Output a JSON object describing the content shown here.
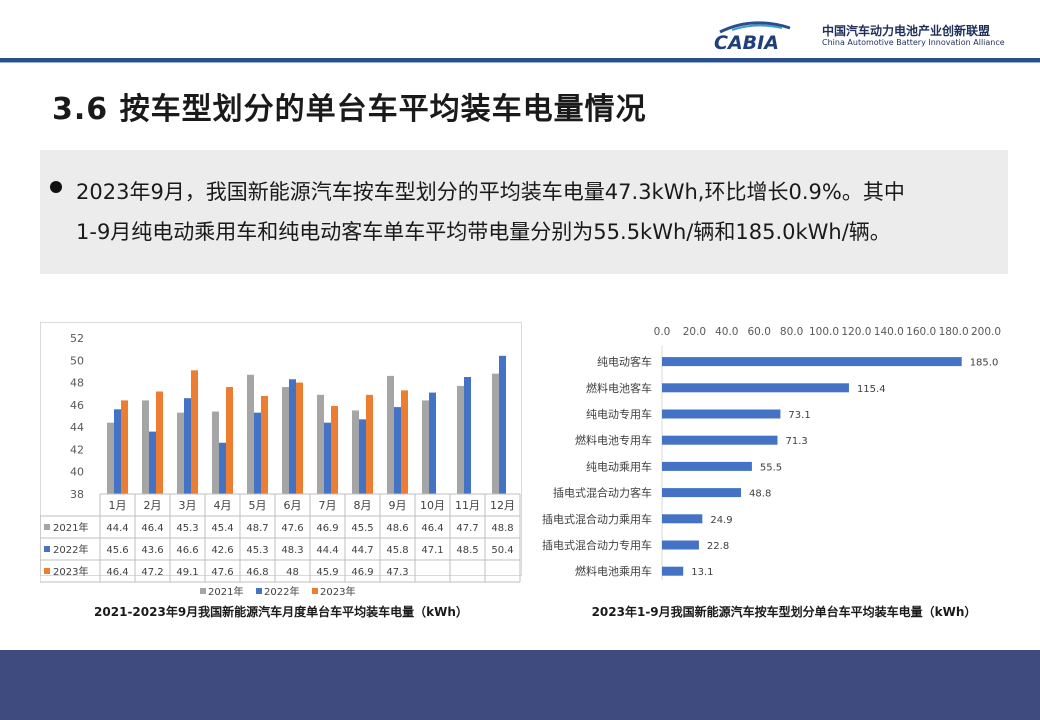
{
  "header": {
    "logo_mark": "CABIA",
    "logo_cn": "中国汽车动力电池产业创新联盟",
    "logo_en": "China Automotive Battery Innovation Alliance"
  },
  "slide_title": "3.6 按车型划分的单台车平均装车电量情况",
  "summary": {
    "line1": "2023年9月，我国新能源汽车按车型划分的平均装车电量47.3kWh,环比增长0.9%。其中",
    "line2": "1-9月纯电动乘用车和纯电动客车单车平均带电量分别为55.5kWh/辆和185.0kWh/辆。"
  },
  "colors": {
    "accent": "#2a4d8f",
    "footer": "#3f4a7e",
    "series_2021": "#a5a5a5",
    "series_2022": "#4472c4",
    "series_2023": "#ed7d31",
    "bar_h": "#4472c4"
  },
  "chart_data": [
    {
      "type": "bar",
      "title": "2021-2023年9月我国新能源汽车月度单台车平均装车电量（kWh）",
      "categories": [
        "1月",
        "2月",
        "3月",
        "4月",
        "5月",
        "6月",
        "7月",
        "8月",
        "9月",
        "10月",
        "11月",
        "12月"
      ],
      "yticks": [
        "52",
        "50",
        "48",
        "46",
        "44",
        "42",
        "40",
        "38"
      ],
      "ylim": [
        38,
        52
      ],
      "series": [
        {
          "name": "2021年",
          "values": [
            44.4,
            46.4,
            45.3,
            45.4,
            48.7,
            47.6,
            46.9,
            45.5,
            48.6,
            46.4,
            47.7,
            48.8
          ],
          "labels": [
            "44.4",
            "46.4",
            "45.3",
            "45.4",
            "48.7",
            "47.6",
            "46.9",
            "45.5",
            "48.6",
            "46.4",
            "47.7",
            "48.8"
          ]
        },
        {
          "name": "2022年",
          "values": [
            45.6,
            43.6,
            46.6,
            42.6,
            45.3,
            48.3,
            44.4,
            44.7,
            45.8,
            47.1,
            48.5,
            50.4
          ],
          "labels": [
            "45.6",
            "43.6",
            "46.6",
            "42.6",
            "45.3",
            "48.3",
            "44.4",
            "44.7",
            "45.8",
            "47.1",
            "48.5",
            "50.4"
          ]
        },
        {
          "name": "2023年",
          "values": [
            46.4,
            47.2,
            49.1,
            47.6,
            46.8,
            48,
            45.9,
            46.9,
            47.3,
            null,
            null,
            null
          ],
          "labels": [
            "46.4",
            "47.2",
            "49.1",
            "47.6",
            "46.8",
            "48",
            "45.9",
            "46.9",
            "47.3",
            "",
            "",
            ""
          ]
        }
      ],
      "legend": "bottom",
      "grid": false,
      "data_table": true
    },
    {
      "type": "bar",
      "orientation": "horizontal",
      "title": "2023年1-9月我国新能源汽车按车型划分单台车平均装车电量（kWh）",
      "categories": [
        "纯电动客车",
        "燃料电池客车",
        "纯电动专用车",
        "燃料电池专用车",
        "纯电动乘用车",
        "插电式混合动力客车",
        "插电式混合动力乘用车",
        "插电式混合动力专用车",
        "燃料电池乘用车"
      ],
      "values": [
        185.0,
        115.4,
        73.1,
        71.3,
        55.5,
        48.8,
        24.9,
        22.8,
        13.1
      ],
      "value_labels": [
        "185.0",
        "115.4",
        "73.1",
        "71.3",
        "55.5",
        "48.8",
        "24.9",
        "22.8",
        "13.1"
      ],
      "xticks": [
        "0.0",
        "20.0",
        "40.0",
        "60.0",
        "80.0",
        "100.0",
        "120.0",
        "140.0",
        "160.0",
        "180.0",
        "200.0"
      ],
      "xlim": [
        0,
        200
      ],
      "xaxis_position": "top",
      "grid": false
    }
  ]
}
